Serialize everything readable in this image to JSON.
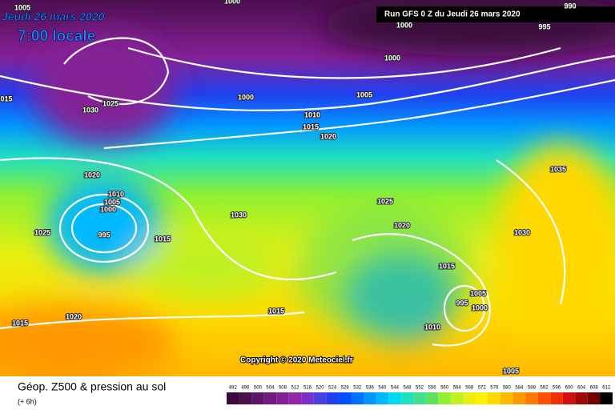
{
  "header": {
    "date": "Jeudi 26 mars 2020",
    "time": "7:00 locale",
    "run": "Run GFS 0 Z du Jeudi 26 mars 2020"
  },
  "isobar_labels": [
    1005,
    1000,
    990,
    1000,
    995,
    1000,
    "015",
    1030,
    1025,
    1000,
    1005,
    1010,
    1015,
    1020,
    1020,
    1010,
    1005,
    1000,
    995,
    1025,
    1015,
    1030,
    1025,
    1020,
    1035,
    1030,
    1015,
    1005,
    995,
    1000,
    1015,
    1020,
    1015,
    1010,
    1005
  ],
  "copyright": "Copyright © 2020 Meteociel.fr",
  "caption": {
    "title": "Géop. Z500 & pression au sol",
    "step": "(+ 6h)"
  },
  "scale": {
    "values": [
      492,
      496,
      500,
      504,
      508,
      512,
      516,
      520,
      524,
      528,
      532,
      536,
      540,
      544,
      548,
      552,
      556,
      560,
      564,
      568,
      572,
      576,
      580,
      584,
      588,
      592,
      596,
      600,
      604,
      608,
      612
    ],
    "colors": [
      "#3a0a3a",
      "#4b0f4e",
      "#5e1468",
      "#701a80",
      "#842096",
      "#9526ac",
      "#7a30c8",
      "#4a3fe0",
      "#2040f0",
      "#0050ff",
      "#0070ff",
      "#0094ff",
      "#00b8ff",
      "#00d8f0",
      "#20e0c0",
      "#40e090",
      "#60e060",
      "#90f030",
      "#c0f020",
      "#e8f010",
      "#fff000",
      "#ffd800",
      "#ffb800",
      "#ff9800",
      "#ff7800",
      "#ff5000",
      "#f03000",
      "#d01010",
      "#a00808",
      "#700000",
      "#000000"
    ]
  }
}
